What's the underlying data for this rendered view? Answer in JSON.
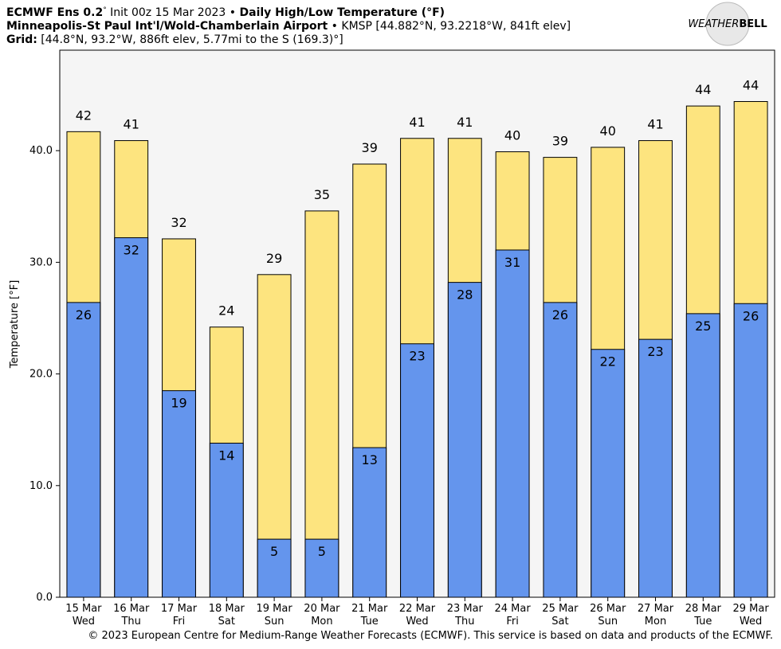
{
  "header": {
    "line1": [
      "ECMWF Ens 0.2",
      "°",
      " Init 00z 15 Mar 2023 • ",
      "Daily High/Low Temperature (°F)"
    ],
    "line2": [
      "Minneapolis-St Paul Int'l/Wold-Chamberlain Airport",
      " • KMSP [44.882°N, 93.2218°W, 841ft elev]"
    ],
    "line3": [
      "Grid:",
      " [44.8°N, 93.2°W, 886ft elev, 5.77mi to the S (169.3)°]"
    ],
    "logo": [
      "WEATHER",
      "BELL"
    ]
  },
  "footer": "© 2023 European Centre for Medium-Range Weather Forecasts (ECMWF). This service is based on data and products of the ECMWF.",
  "chart_data": {
    "type": "bar",
    "y_label": "Temperature [°F]",
    "categories": [
      "15 Mar",
      "16 Mar",
      "17 Mar",
      "18 Mar",
      "19 Mar",
      "20 Mar",
      "21 Mar",
      "22 Mar",
      "23 Mar",
      "24 Mar",
      "25 Mar",
      "26 Mar",
      "27 Mar",
      "28 Mar",
      "29 Mar"
    ],
    "weekdays": [
      "Wed",
      "Thu",
      "Fri",
      "Sat",
      "Sun",
      "Mon",
      "Tue",
      "Wed",
      "Thu",
      "Fri",
      "Sat",
      "Sun",
      "Mon",
      "Tue",
      "Wed"
    ],
    "series": [
      {
        "color": "#fde47f",
        "values": [
          41.7,
          40.9,
          32.1,
          24.2,
          28.9,
          34.6,
          38.8,
          41.1,
          41.1,
          39.9,
          39.4,
          40.3,
          40.9,
          44.0,
          44.4
        ],
        "value_labels": [
          "42",
          "41",
          "32",
          "24",
          "29",
          "35",
          "39",
          "41",
          "41",
          "40",
          "39",
          "40",
          "41",
          "44",
          "44"
        ]
      },
      {
        "color": "#6495ed",
        "values": [
          26.4,
          32.2,
          18.5,
          13.8,
          5.2,
          5.2,
          13.4,
          22.7,
          28.2,
          31.1,
          26.4,
          22.2,
          23.1,
          25.4,
          26.3
        ],
        "value_labels": [
          "26",
          "32",
          "19",
          "14",
          "5",
          "5",
          "13",
          "23",
          "28",
          "31",
          "26",
          "22",
          "23",
          "25",
          "26"
        ]
      }
    ],
    "ylim": [
      0,
      49
    ],
    "yticks": [
      {
        "value": 0,
        "label": "0.0"
      },
      {
        "value": 10,
        "label": "10.0"
      },
      {
        "value": 20,
        "label": "20.0"
      },
      {
        "value": 30,
        "label": "30.0"
      },
      {
        "value": 40,
        "label": "40.0"
      }
    ]
  }
}
